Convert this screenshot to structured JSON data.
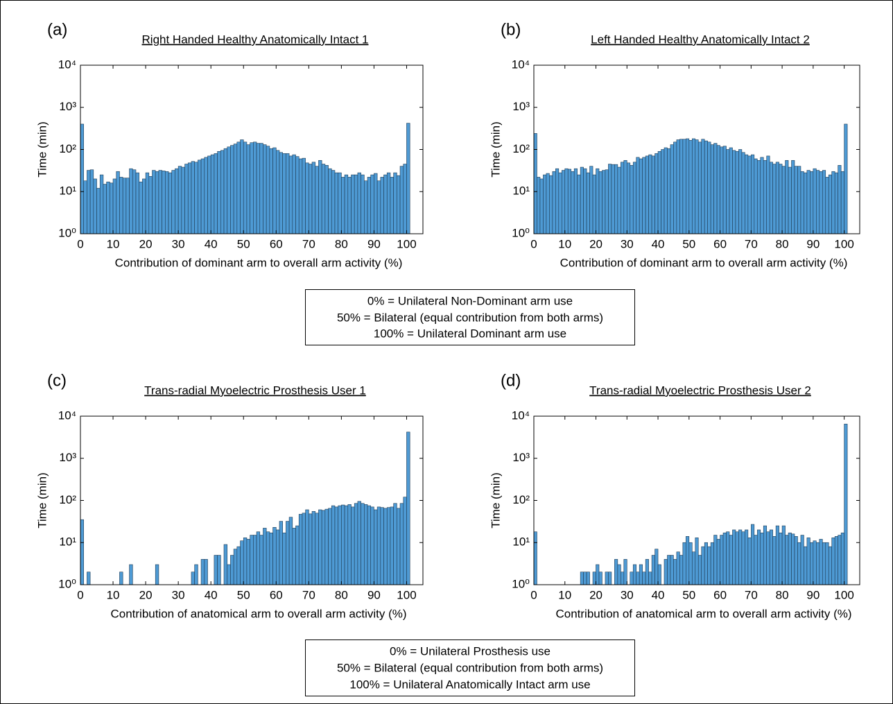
{
  "chart_data": [
    {
      "type": "bar",
      "panel": "(a)",
      "title": "Right Handed Healthy Anatomically Intact 1",
      "y_label": "Time (min)",
      "x_label": "Contribution of dominant arm to overall arm activity (%)",
      "color": "#4e9ad4",
      "log_y": true,
      "x": [
        0,
        1,
        2,
        3,
        4,
        5,
        6,
        7,
        8,
        9,
        10,
        11,
        12,
        13,
        14,
        15,
        16,
        17,
        18,
        19,
        20,
        21,
        22,
        23,
        24,
        25,
        26,
        27,
        28,
        29,
        30,
        31,
        32,
        33,
        34,
        35,
        36,
        37,
        38,
        39,
        40,
        41,
        42,
        43,
        44,
        45,
        46,
        47,
        48,
        49,
        50,
        51,
        52,
        53,
        54,
        55,
        56,
        57,
        58,
        59,
        60,
        61,
        62,
        63,
        64,
        65,
        66,
        67,
        68,
        69,
        70,
        71,
        72,
        73,
        74,
        75,
        76,
        77,
        78,
        79,
        80,
        81,
        82,
        83,
        84,
        85,
        86,
        87,
        88,
        89,
        90,
        91,
        92,
        93,
        94,
        95,
        96,
        97,
        98,
        99,
        100
      ],
      "values": [
        400,
        18,
        32,
        33,
        20,
        12,
        25,
        15,
        17,
        16,
        20,
        30,
        22,
        21,
        21,
        35,
        33,
        28,
        17,
        20,
        28,
        23,
        32,
        30,
        32,
        31,
        30,
        28,
        32,
        35,
        40,
        38,
        45,
        48,
        52,
        50,
        56,
        60,
        65,
        70,
        75,
        80,
        90,
        95,
        105,
        115,
        125,
        135,
        150,
        170,
        150,
        130,
        145,
        150,
        140,
        140,
        130,
        120,
        105,
        110,
        95,
        85,
        80,
        80,
        70,
        75,
        68,
        60,
        62,
        48,
        45,
        50,
        40,
        55,
        45,
        42,
        35,
        32,
        28,
        28,
        22,
        25,
        22,
        25,
        25,
        28,
        25,
        18,
        22,
        25,
        27,
        18,
        22,
        25,
        28,
        22,
        28,
        24,
        40,
        45,
        420
      ],
      "xlim": [
        0,
        105
      ],
      "xticks": [
        0,
        10,
        20,
        30,
        40,
        50,
        60,
        70,
        80,
        90,
        100
      ],
      "ylim": [
        1,
        10000
      ],
      "yticks": [
        {
          "value": 1,
          "label": "10⁰"
        },
        {
          "value": 10,
          "label": "10¹"
        },
        {
          "value": 100,
          "label": "10²"
        },
        {
          "value": 1000,
          "label": "10³"
        },
        {
          "value": 10000,
          "label": "10⁴"
        }
      ]
    },
    {
      "type": "bar",
      "panel": "(b)",
      "title": "Left Handed Healthy Anatomically Intact 2",
      "y_label": "Time (min)",
      "x_label": "Contribution of dominant arm to overall arm activity (%)",
      "color": "#4e9ad4",
      "log_y": true,
      "x": [
        0,
        1,
        2,
        3,
        4,
        5,
        6,
        7,
        8,
        9,
        10,
        11,
        12,
        13,
        14,
        15,
        16,
        17,
        18,
        19,
        20,
        21,
        22,
        23,
        24,
        25,
        26,
        27,
        28,
        29,
        30,
        31,
        32,
        33,
        34,
        35,
        36,
        37,
        38,
        39,
        40,
        41,
        42,
        43,
        44,
        45,
        46,
        47,
        48,
        49,
        50,
        51,
        52,
        53,
        54,
        55,
        56,
        57,
        58,
        59,
        60,
        61,
        62,
        63,
        64,
        65,
        66,
        67,
        68,
        69,
        70,
        71,
        72,
        73,
        74,
        75,
        76,
        77,
        78,
        79,
        80,
        81,
        82,
        83,
        84,
        85,
        86,
        87,
        88,
        89,
        90,
        91,
        92,
        93,
        94,
        95,
        96,
        97,
        98,
        99,
        100
      ],
      "values": [
        240,
        22,
        20,
        25,
        27,
        24,
        30,
        35,
        28,
        32,
        35,
        34,
        30,
        35,
        25,
        38,
        35,
        28,
        40,
        25,
        35,
        30,
        32,
        33,
        45,
        44,
        44,
        38,
        50,
        55,
        48,
        42,
        50,
        65,
        60,
        65,
        70,
        75,
        70,
        80,
        90,
        100,
        110,
        105,
        130,
        150,
        170,
        175,
        175,
        180,
        165,
        180,
        170,
        150,
        175,
        160,
        150,
        130,
        140,
        125,
        115,
        120,
        100,
        110,
        95,
        90,
        100,
        85,
        75,
        70,
        75,
        60,
        55,
        65,
        55,
        70,
        50,
        45,
        50,
        45,
        40,
        55,
        38,
        55,
        40,
        40,
        30,
        28,
        32,
        30,
        35,
        32,
        30,
        32,
        22,
        25,
        30,
        28,
        42,
        30,
        400
      ],
      "xlim": [
        0,
        105
      ],
      "xticks": [
        0,
        10,
        20,
        30,
        40,
        50,
        60,
        70,
        80,
        90,
        100
      ],
      "ylim": [
        1,
        10000
      ],
      "yticks": [
        {
          "value": 1,
          "label": "10⁰"
        },
        {
          "value": 10,
          "label": "10¹"
        },
        {
          "value": 100,
          "label": "10²"
        },
        {
          "value": 1000,
          "label": "10³"
        },
        {
          "value": 10000,
          "label": "10⁴"
        }
      ]
    },
    {
      "type": "bar",
      "panel": "(c)",
      "title": "Trans-radial Myoelectric Prosthesis User 1",
      "y_label": "Time (min)",
      "x_label": "Contribution of anatomical arm to overall arm activity (%)",
      "color": "#4e9ad4",
      "log_y": true,
      "x": [
        0,
        1,
        2,
        3,
        4,
        5,
        6,
        7,
        8,
        9,
        10,
        11,
        12,
        13,
        14,
        15,
        16,
        17,
        18,
        19,
        20,
        21,
        22,
        23,
        24,
        25,
        26,
        27,
        28,
        29,
        30,
        31,
        32,
        33,
        34,
        35,
        36,
        37,
        38,
        39,
        40,
        41,
        42,
        43,
        44,
        45,
        46,
        47,
        48,
        49,
        50,
        51,
        52,
        53,
        54,
        55,
        56,
        57,
        58,
        59,
        60,
        61,
        62,
        63,
        64,
        65,
        66,
        67,
        68,
        69,
        70,
        71,
        72,
        73,
        74,
        75,
        76,
        77,
        78,
        79,
        80,
        81,
        82,
        83,
        84,
        85,
        86,
        87,
        88,
        89,
        90,
        91,
        92,
        93,
        94,
        95,
        96,
        97,
        98,
        99,
        100
      ],
      "values": [
        35,
        0,
        2,
        0,
        1,
        1,
        1,
        1,
        1,
        1,
        0,
        0,
        2,
        0,
        0,
        3,
        0,
        0,
        0,
        0,
        0,
        0,
        0,
        3,
        0,
        1,
        1,
        1,
        1,
        0,
        0,
        1,
        1,
        0,
        2,
        3,
        0,
        4,
        4,
        0,
        0,
        5,
        5,
        0,
        9,
        3,
        5,
        7,
        8,
        11,
        13,
        12,
        15,
        15,
        18,
        15,
        22,
        18,
        17,
        23,
        20,
        32,
        17,
        32,
        40,
        22,
        25,
        47,
        50,
        60,
        48,
        55,
        50,
        60,
        58,
        62,
        65,
        75,
        70,
        75,
        78,
        75,
        80,
        70,
        85,
        95,
        85,
        80,
        75,
        70,
        60,
        70,
        68,
        65,
        68,
        70,
        85,
        65,
        85,
        120,
        4200
      ],
      "xlim": [
        0,
        105
      ],
      "xticks": [
        0,
        10,
        20,
        30,
        40,
        50,
        60,
        70,
        80,
        90,
        100
      ],
      "ylim": [
        1,
        10000
      ],
      "yticks": [
        {
          "value": 1,
          "label": "10⁰"
        },
        {
          "value": 10,
          "label": "10¹"
        },
        {
          "value": 100,
          "label": "10²"
        },
        {
          "value": 1000,
          "label": "10³"
        },
        {
          "value": 10000,
          "label": "10⁴"
        }
      ]
    },
    {
      "type": "bar",
      "panel": "(d)",
      "title": "Trans-radial Myoelectric Prosthesis User 2",
      "y_label": "Time (min)",
      "x_label": "Contribution of anatomical arm to overall arm activity (%)",
      "color": "#4e9ad4",
      "log_y": true,
      "x": [
        0,
        1,
        2,
        3,
        4,
        5,
        6,
        7,
        8,
        9,
        10,
        11,
        12,
        13,
        14,
        15,
        16,
        17,
        18,
        19,
        20,
        21,
        22,
        23,
        24,
        25,
        26,
        27,
        28,
        29,
        30,
        31,
        32,
        33,
        34,
        35,
        36,
        37,
        38,
        39,
        40,
        41,
        42,
        43,
        44,
        45,
        46,
        47,
        48,
        49,
        50,
        51,
        52,
        53,
        54,
        55,
        56,
        57,
        58,
        59,
        60,
        61,
        62,
        63,
        64,
        65,
        66,
        67,
        68,
        69,
        70,
        71,
        72,
        73,
        74,
        75,
        76,
        77,
        78,
        79,
        80,
        81,
        82,
        83,
        84,
        85,
        86,
        87,
        88,
        89,
        90,
        91,
        92,
        93,
        94,
        95,
        96,
        97,
        98,
        99,
        100
      ],
      "values": [
        18,
        1,
        1,
        1,
        1,
        1,
        1,
        1,
        1,
        0,
        1,
        0,
        0,
        1,
        0,
        2,
        2,
        2,
        1,
        2,
        3,
        2,
        1,
        2,
        2,
        1,
        4,
        3,
        2,
        4,
        1,
        2,
        3,
        2,
        3,
        2,
        4,
        2,
        5,
        7,
        3,
        1,
        4,
        5,
        5,
        4,
        6,
        5,
        10,
        14,
        10,
        6,
        13,
        5,
        8,
        10,
        8,
        10,
        15,
        12,
        15,
        17,
        18,
        15,
        20,
        18,
        20,
        18,
        20,
        13,
        27,
        15,
        20,
        17,
        25,
        18,
        20,
        14,
        25,
        17,
        25,
        15,
        17,
        16,
        14,
        10,
        15,
        8,
        13,
        10,
        11,
        10,
        12,
        10,
        10,
        8,
        13,
        14,
        15,
        17,
        6500
      ],
      "xlim": [
        0,
        105
      ],
      "xticks": [
        0,
        10,
        20,
        30,
        40,
        50,
        60,
        70,
        80,
        90,
        100
      ],
      "ylim": [
        1,
        10000
      ],
      "yticks": [
        {
          "value": 1,
          "label": "10⁰"
        },
        {
          "value": 10,
          "label": "10¹"
        },
        {
          "value": 100,
          "label": "10²"
        },
        {
          "value": 1000,
          "label": "10³"
        },
        {
          "value": 10000,
          "label": "10⁴"
        }
      ]
    }
  ],
  "notes": [
    [
      "0% = Unilateral Non-Dominant arm use",
      "50% = Bilateral (equal contribution from both arms)",
      "100% = Unilateral Dominant arm use"
    ],
    [
      "0% = Unilateral Prosthesis use",
      "50% = Bilateral (equal contribution from both arms)",
      "100% = Unilateral Anatomically Intact arm use"
    ]
  ]
}
